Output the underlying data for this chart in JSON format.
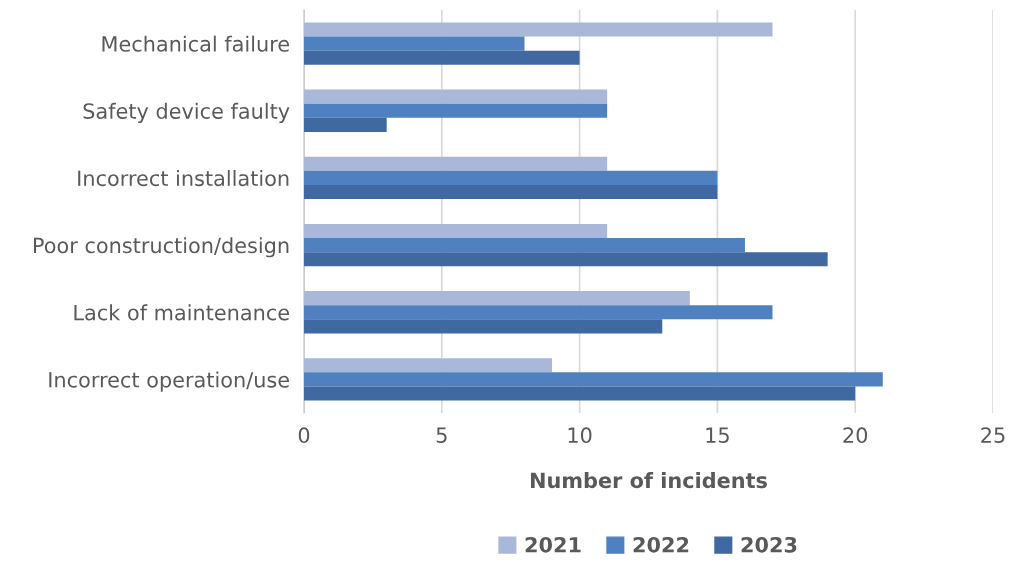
{
  "chart_data": {
    "type": "bar",
    "orientation": "horizontal",
    "xlabel": "Number of incidents",
    "categories": [
      "Mechanical failure",
      "Safety device faulty",
      "Incorrect installation",
      "Poor construction/design",
      "Lack of maintenance",
      "Incorrect operation/use"
    ],
    "series": [
      {
        "name": "2021",
        "color": "#a9b8d9",
        "values": [
          17,
          11,
          11,
          11,
          14,
          9
        ]
      },
      {
        "name": "2022",
        "color": "#4f81c0",
        "values": [
          8,
          11,
          15,
          16,
          17,
          21
        ]
      },
      {
        "name": "2023",
        "color": "#3f69a0",
        "values": [
          10,
          3,
          15,
          19,
          13,
          20
        ]
      }
    ],
    "xlim": [
      0,
      25
    ],
    "xticks": [
      0,
      5,
      10,
      15,
      20,
      25
    ],
    "grid": "x",
    "legend": "bottom"
  }
}
